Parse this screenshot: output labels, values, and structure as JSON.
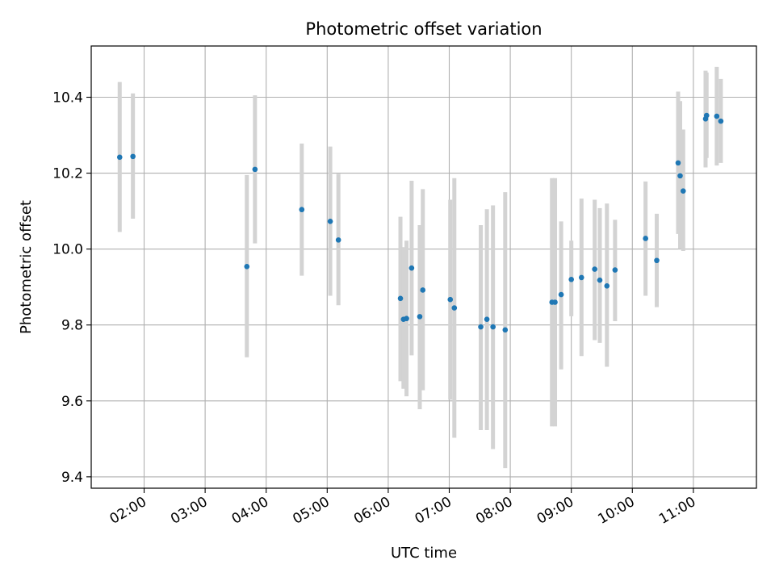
{
  "chart_data": {
    "type": "scatter",
    "title": "Photometric offset variation",
    "xlabel": "UTC time",
    "ylabel": "Photometric offset",
    "grid": true,
    "legend": "none",
    "x_tick_labels": [
      "02:00",
      "03:00",
      "04:00",
      "05:00",
      "06:00",
      "07:00",
      "08:00",
      "09:00",
      "10:00",
      "11:00"
    ],
    "y_tick_labels": [
      "9.4",
      "9.6",
      "9.8",
      "10.0",
      "10.2",
      "10.4"
    ],
    "xlim": [
      "01:08",
      "12:02"
    ],
    "ylim": [
      9.37,
      10.535
    ],
    "colors": {
      "point": "#1f77b4",
      "error_bar": "#d3d3d3",
      "grid": "#b0b0b0"
    },
    "series": [
      {
        "points": [
          {
            "x": "01:36",
            "y": 10.242,
            "lo": 10.045,
            "hi": 10.44
          },
          {
            "x": "01:49",
            "y": 10.244,
            "lo": 10.08,
            "hi": 10.41
          },
          {
            "x": "03:41",
            "y": 9.954,
            "lo": 9.715,
            "hi": 10.195
          },
          {
            "x": "03:49",
            "y": 10.21,
            "lo": 10.015,
            "hi": 10.405
          },
          {
            "x": "04:35",
            "y": 10.104,
            "lo": 9.93,
            "hi": 10.278
          },
          {
            "x": "05:03",
            "y": 10.073,
            "lo": 9.877,
            "hi": 10.27
          },
          {
            "x": "05:11",
            "y": 10.024,
            "lo": 9.852,
            "hi": 10.198
          },
          {
            "x": "06:12",
            "y": 9.87,
            "lo": 9.652,
            "hi": 10.085
          },
          {
            "x": "06:15",
            "y": 9.815,
            "lo": 9.632,
            "hi": 10.005
          },
          {
            "x": "06:18",
            "y": 9.817,
            "lo": 9.612,
            "hi": 10.022
          },
          {
            "x": "06:23",
            "y": 9.95,
            "lo": 9.72,
            "hi": 10.18
          },
          {
            "x": "06:31",
            "y": 9.822,
            "lo": 9.578,
            "hi": 10.063
          },
          {
            "x": "06:34",
            "y": 9.892,
            "lo": 9.628,
            "hi": 10.158
          },
          {
            "x": "07:01",
            "y": 9.867,
            "lo": 9.603,
            "hi": 10.13
          },
          {
            "x": "07:05",
            "y": 9.845,
            "lo": 9.503,
            "hi": 10.187
          },
          {
            "x": "07:31",
            "y": 9.795,
            "lo": 9.523,
            "hi": 10.063
          },
          {
            "x": "07:37",
            "y": 9.815,
            "lo": 9.523,
            "hi": 10.105
          },
          {
            "x": "07:43",
            "y": 9.795,
            "lo": 9.473,
            "hi": 10.115
          },
          {
            "x": "07:55",
            "y": 9.787,
            "lo": 9.423,
            "hi": 10.15
          },
          {
            "x": "08:41",
            "y": 9.86,
            "lo": 9.533,
            "hi": 10.187
          },
          {
            "x": "08:44",
            "y": 9.86,
            "lo": 9.533,
            "hi": 10.187
          },
          {
            "x": "08:50",
            "y": 9.88,
            "lo": 9.683,
            "hi": 10.073
          },
          {
            "x": "09:00",
            "y": 9.92,
            "lo": 9.823,
            "hi": 10.022
          },
          {
            "x": "09:10",
            "y": 9.925,
            "lo": 9.718,
            "hi": 10.133
          },
          {
            "x": "09:23",
            "y": 9.947,
            "lo": 9.76,
            "hi": 10.13
          },
          {
            "x": "09:28",
            "y": 9.918,
            "lo": 9.753,
            "hi": 10.108
          },
          {
            "x": "09:35",
            "y": 9.903,
            "lo": 9.69,
            "hi": 10.12
          },
          {
            "x": "09:43",
            "y": 9.945,
            "lo": 9.81,
            "hi": 10.077
          },
          {
            "x": "10:13",
            "y": 10.028,
            "lo": 9.877,
            "hi": 10.178
          },
          {
            "x": "10:24",
            "y": 9.97,
            "lo": 9.847,
            "hi": 10.093
          },
          {
            "x": "10:45",
            "y": 10.227,
            "lo": 10.04,
            "hi": 10.415
          },
          {
            "x": "10:47",
            "y": 10.193,
            "lo": 10.0,
            "hi": 10.39
          },
          {
            "x": "10:50",
            "y": 10.153,
            "lo": 9.995,
            "hi": 10.315
          },
          {
            "x": "11:12",
            "y": 10.343,
            "lo": 10.215,
            "hi": 10.47
          },
          {
            "x": "11:13",
            "y": 10.352,
            "lo": 10.24,
            "hi": 10.465
          },
          {
            "x": "11:23",
            "y": 10.35,
            "lo": 10.22,
            "hi": 10.48
          },
          {
            "x": "11:27",
            "y": 10.337,
            "lo": 10.227,
            "hi": 10.448
          }
        ]
      }
    ]
  }
}
